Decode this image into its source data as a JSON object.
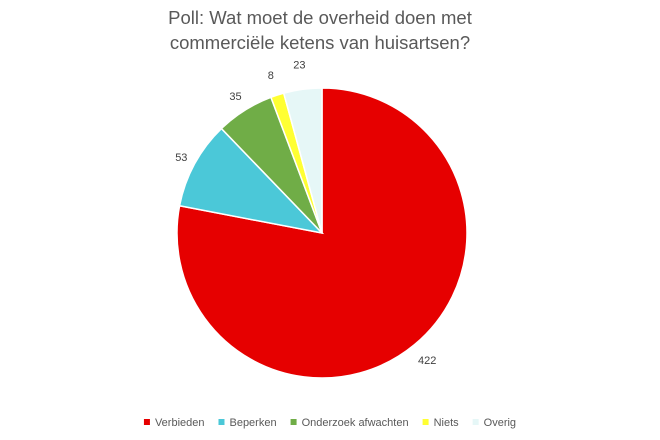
{
  "chart_data": {
    "type": "pie",
    "title_lines": [
      "Poll: Wat moet de overheid doen met",
      "commerciële ketens van huisartsen?"
    ],
    "categories": [
      "Verbieden",
      "Beperken",
      "Onderzoek afwachten",
      "Niets",
      "Overig"
    ],
    "values": [
      422,
      53,
      35,
      8,
      23
    ],
    "colors": [
      "#E60000",
      "#4BC8D8",
      "#70AD47",
      "#FFFF33",
      "#E6F7F7"
    ],
    "legend_position": "bottom"
  }
}
